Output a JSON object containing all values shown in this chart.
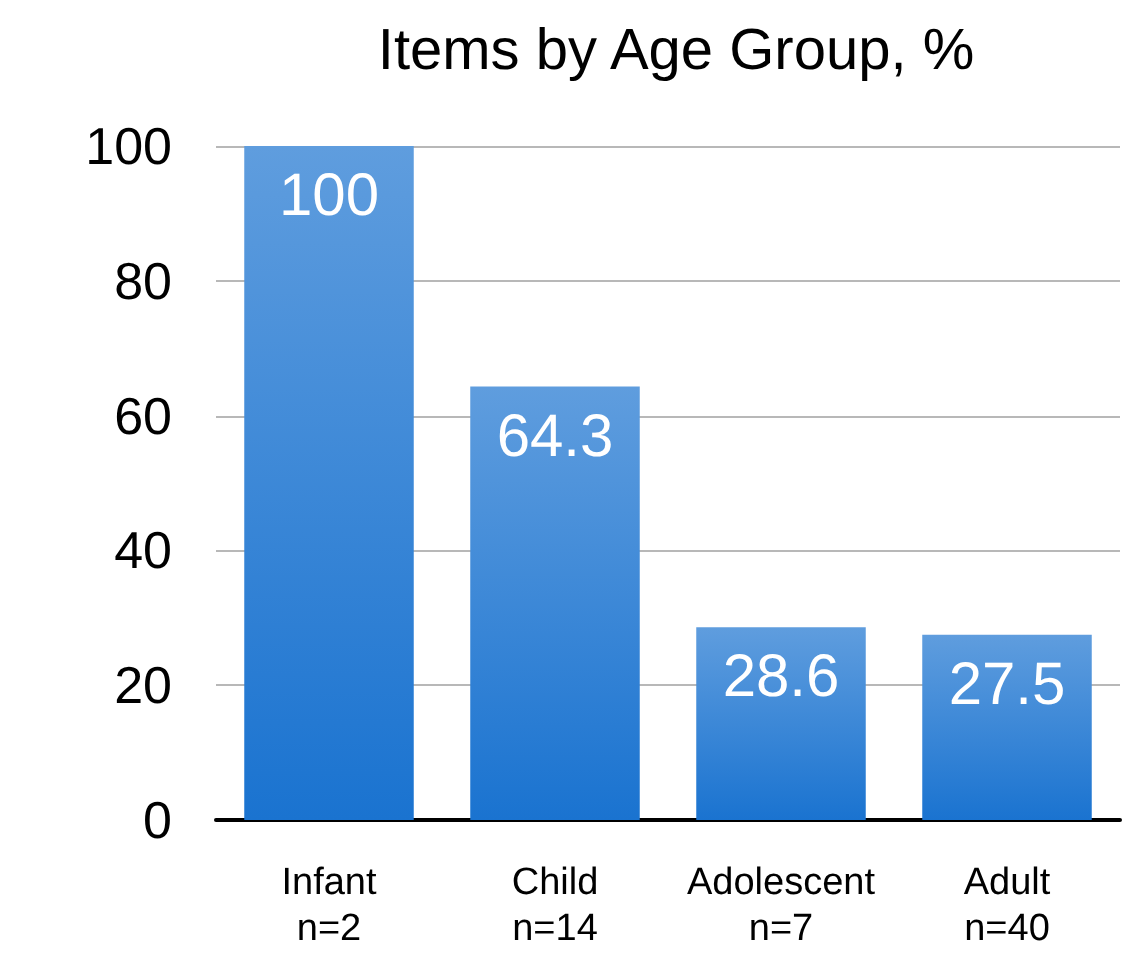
{
  "chart_data": {
    "type": "bar",
    "title": "Items by Age Group, %",
    "categories": [
      "Infant\nn=2",
      "Child\nn=14",
      "Adolescent\nn=7",
      "Adult\nn=40"
    ],
    "values": [
      100,
      64.3,
      28.6,
      27.5
    ],
    "color": "#1a73d0",
    "ylim": [
      0,
      100
    ],
    "yticks": [
      0,
      20,
      40,
      60,
      80,
      100
    ],
    "grid": "y",
    "data_labels": true
  }
}
